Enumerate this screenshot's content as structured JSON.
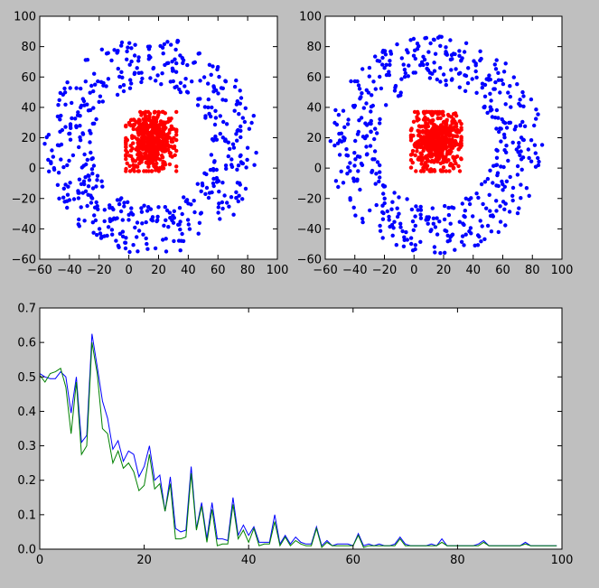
{
  "chart_data": [
    {
      "type": "scatter",
      "title": "",
      "xlabel": "",
      "ylabel": "",
      "xlim": [
        -60,
        100
      ],
      "ylim": [
        -60,
        100
      ],
      "xticks": [
        -60,
        -40,
        -20,
        0,
        20,
        40,
        60,
        80,
        100
      ],
      "yticks": [
        -60,
        -40,
        -20,
        0,
        20,
        40,
        60,
        80,
        100
      ],
      "grid": false,
      "legend": "none",
      "series": [
        {
          "color": "#0000ff",
          "cluster": "outer ring",
          "center": [
            15,
            15
          ],
          "radius_range": [
            40,
            72
          ],
          "approx_points": 500
        },
        {
          "color": "#ff0000",
          "cluster": "inner square",
          "x_range": [
            -2,
            32
          ],
          "y_range": [
            -2,
            37
          ],
          "approx_points": 500
        }
      ]
    },
    {
      "type": "scatter",
      "title": "",
      "xlabel": "",
      "ylabel": "",
      "xlim": [
        -60,
        100
      ],
      "ylim": [
        -60,
        100
      ],
      "xticks": [
        -60,
        -40,
        -20,
        0,
        20,
        40,
        60,
        80,
        100
      ],
      "yticks": [
        -60,
        -40,
        -20,
        0,
        20,
        40,
        60,
        80,
        100
      ],
      "grid": false,
      "legend": "none",
      "series": [
        {
          "color": "#0000ff",
          "cluster": "outer ring",
          "center": [
            15,
            15
          ],
          "radius_range": [
            40,
            72
          ],
          "approx_points": 500
        },
        {
          "color": "#ff0000",
          "cluster": "inner square",
          "x_range": [
            -2,
            32
          ],
          "y_range": [
            -2,
            37
          ],
          "approx_points": 500
        }
      ]
    },
    {
      "type": "line",
      "title": "",
      "xlabel": "",
      "ylabel": "",
      "xlim": [
        0,
        100
      ],
      "ylim": [
        0,
        0.7
      ],
      "xticks": [
        0,
        20,
        40,
        60,
        80,
        100
      ],
      "yticks": [
        "0.0",
        "0.1",
        "0.2",
        "0.3",
        "0.4",
        "0.5",
        "0.6",
        "0.7"
      ],
      "grid": false,
      "legend": "none",
      "series": [
        {
          "color": "#0000ff",
          "values": [
            0.51,
            0.5,
            0.495,
            0.495,
            0.515,
            0.5,
            0.395,
            0.5,
            0.31,
            0.33,
            0.625,
            0.53,
            0.43,
            0.38,
            0.29,
            0.315,
            0.255,
            0.285,
            0.275,
            0.21,
            0.24,
            0.3,
            0.2,
            0.215,
            0.11,
            0.21,
            0.06,
            0.05,
            0.055,
            0.24,
            0.06,
            0.135,
            0.03,
            0.135,
            0.03,
            0.03,
            0.025,
            0.15,
            0.04,
            0.07,
            0.04,
            0.065,
            0.02,
            0.02,
            0.02,
            0.1,
            0.015,
            0.04,
            0.015,
            0.035,
            0.02,
            0.015,
            0.015,
            0.065,
            0.01,
            0.025,
            0.01,
            0.015,
            0.015,
            0.015,
            0.01,
            0.045,
            0.01,
            0.015,
            0.01,
            0.015,
            0.01,
            0.01,
            0.015,
            0.035,
            0.015,
            0.01,
            0.01,
            0.01,
            0.01,
            0.015,
            0.01,
            0.03,
            0.01,
            0.01,
            0.01,
            0.01,
            0.01,
            0.01,
            0.015,
            0.025,
            0.01,
            0.01,
            0.01,
            0.01,
            0.01,
            0.01,
            0.01,
            0.02,
            0.01,
            0.01,
            0.01,
            0.01,
            0.01,
            0.01
          ]
        },
        {
          "color": "#008000",
          "values": [
            0.505,
            0.485,
            0.51,
            0.515,
            0.525,
            0.47,
            0.335,
            0.485,
            0.275,
            0.3,
            0.6,
            0.51,
            0.35,
            0.335,
            0.25,
            0.285,
            0.235,
            0.25,
            0.225,
            0.17,
            0.185,
            0.275,
            0.175,
            0.19,
            0.11,
            0.19,
            0.03,
            0.03,
            0.035,
            0.22,
            0.055,
            0.125,
            0.02,
            0.115,
            0.01,
            0.015,
            0.015,
            0.13,
            0.03,
            0.055,
            0.02,
            0.06,
            0.01,
            0.015,
            0.015,
            0.08,
            0.01,
            0.035,
            0.01,
            0.025,
            0.015,
            0.01,
            0.01,
            0.06,
            0.005,
            0.02,
            0.01,
            0.01,
            0.01,
            0.01,
            0.01,
            0.04,
            0.005,
            0.01,
            0.01,
            0.01,
            0.01,
            0.01,
            0.01,
            0.03,
            0.01,
            0.01,
            0.01,
            0.01,
            0.01,
            0.01,
            0.01,
            0.02,
            0.01,
            0.01,
            0.01,
            0.01,
            0.01,
            0.01,
            0.01,
            0.02,
            0.01,
            0.01,
            0.01,
            0.01,
            0.01,
            0.01,
            0.01,
            0.015,
            0.01,
            0.01,
            0.01,
            0.01,
            0.01,
            0.01
          ]
        }
      ]
    }
  ]
}
